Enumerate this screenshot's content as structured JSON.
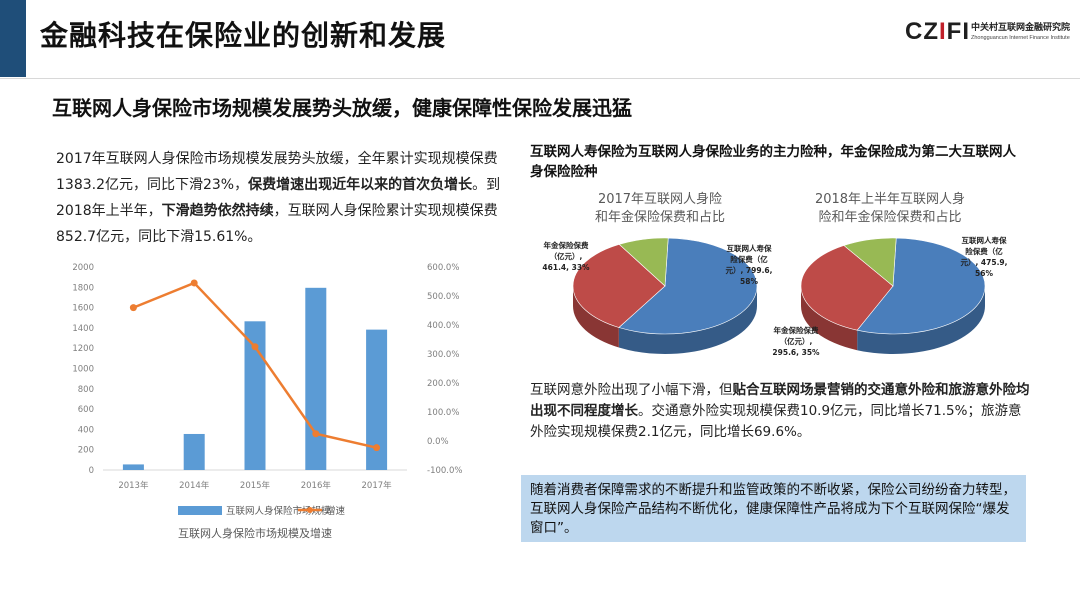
{
  "header": {
    "title": "金融科技在保险业的创新和发展",
    "logo_mark": "CZIFI",
    "logo_cn": "中关村互联网金融研究院",
    "logo_en": "Zhongguancun Internet Finance Institute"
  },
  "subtitle": "互联网人身保险市场规模发展势头放缓，健康保障性保险发展迅猛",
  "left_text": {
    "p1_a": "2017年互联网人身保险市场规模发展势头放缓，全年累计实现规模保费1383.2亿元，同比下滑23%，",
    "p1_b": "保费增速出现近年以来的首次负增长",
    "p1_c": "。到2018年上半年，",
    "p1_d": "下滑趋势依然持续",
    "p1_e": "，互联网人身保险累计实现规模保费852.7亿元，同比下滑15.61%。"
  },
  "right_heading": "互联网人寿保险为互联网人身保险业务的主力险种，年金保险成为第二大互联网人身保险险种",
  "right_text": {
    "p2_a": "互联网意外险出现了小幅下滑，但",
    "p2_b": "贴合互联网场景营销的交通意外险和旅游意外险均出现不同程度增长",
    "p2_c": "。交通意外险实现规模保费10.9亿元，同比增长71.5%；旅游意外险实现规模保费2.1亿元，同比增长69.6%。"
  },
  "note": "随着消费者保障需求的不断提升和监管政策的不断收紧，保险公司纷纷奋力转型，互联网人身保险产品结构不断优化，健康保障性产品将成为下个互联网保险“爆发窗口”。",
  "chart_data": [
    {
      "type": "bar",
      "title": "互联网人身保险市场规模及增速",
      "categories": [
        "2013年",
        "2014年",
        "2015年",
        "2016年",
        "2017年"
      ],
      "series": [
        {
          "name": "互联网人身保险市场规模",
          "type": "bar",
          "axis": "left",
          "color": "#5b9bd5",
          "values": [
            55,
            355,
            1465,
            1795,
            1383
          ]
        },
        {
          "name": "增速",
          "type": "line",
          "axis": "right",
          "color": "#ed7d31",
          "values": [
            460,
            545,
            325,
            25,
            -23
          ]
        }
      ],
      "yleft": {
        "ylim": [
          0,
          2000
        ],
        "ticks": [
          "0",
          "200",
          "400",
          "600",
          "800",
          "1000",
          "1200",
          "1400",
          "1600",
          "1800",
          "2000"
        ]
      },
      "yright": {
        "ylim": [
          -100,
          600
        ],
        "ticks": [
          "-100.0%",
          "0.0%",
          "100.0%",
          "200.0%",
          "300.0%",
          "400.0%",
          "500.0%",
          "600.0%"
        ]
      },
      "legend": "bottom",
      "grid": false
    },
    {
      "type": "pie",
      "title": "2017年互联网人身险和年金保险保费和占比",
      "title_line1": "2017年互联网人身险",
      "title_line2": "和年金保险保费和占比",
      "slices": [
        {
          "label": "互联网人寿保险保费（亿元）, 799.6, 58%",
          "l1": "互联网人寿保",
          "l2": "险保费（亿",
          "l3": "元）, 799.6,",
          "l4": "58%",
          "value": 799.6,
          "color": "#4a7ebb"
        },
        {
          "label": "年金保险保费（亿元）, 461.4, 33%",
          "l1": "年金保险保费",
          "l2": "（亿元）,",
          "l3": "461.4, 33%",
          "value": 461.4,
          "color": "#be4b48"
        },
        {
          "label": "其他",
          "value": 122.2,
          "color": "#98b954"
        }
      ]
    },
    {
      "type": "pie",
      "title": "2018年上半年互联网人身险和年金保险保费和占比",
      "title_line1": "2018年上半年互联网人身",
      "title_line2": "险和年金保险保费和占比",
      "slices": [
        {
          "label": "互联网人寿保险保费（亿元）, 475.9, 56%",
          "l1": "互联网人寿保",
          "l2": "险保费（亿",
          "l3": "元）, 475.9,",
          "l4": "56%",
          "value": 475.9,
          "color": "#4a7ebb"
        },
        {
          "label": "年金保险保费（亿元）, 295.6, 35%",
          "l1": "年金保险保费",
          "l2": "（亿元）,",
          "l3": "295.6, 35%",
          "value": 295.6,
          "color": "#be4b48"
        },
        {
          "label": "其他",
          "value": 81.2,
          "color": "#98b954"
        }
      ]
    }
  ]
}
